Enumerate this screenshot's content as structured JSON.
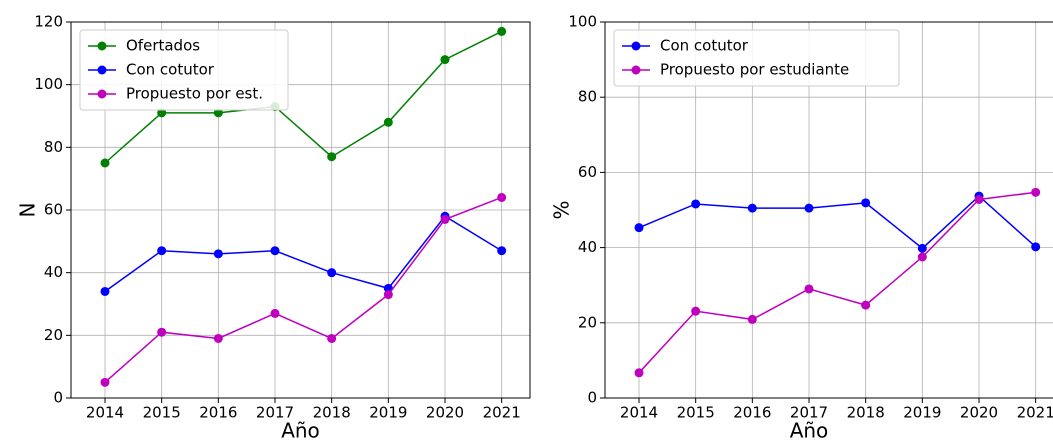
{
  "chart_data": [
    {
      "type": "line",
      "xlabel": "Año",
      "ylabel": "N",
      "x": [
        2014,
        2015,
        2016,
        2017,
        2018,
        2019,
        2020,
        2021
      ],
      "xlim": [
        2013.4,
        2021.5
      ],
      "xticks": [
        2014,
        2015,
        2016,
        2017,
        2018,
        2019,
        2020,
        2021
      ],
      "ylim": [
        0,
        120
      ],
      "yticks": [
        0,
        20,
        40,
        60,
        80,
        100,
        120
      ],
      "grid": true,
      "legend": "upper left",
      "series": [
        {
          "name": "Ofertados",
          "color": "#008000",
          "values": [
            75,
            91,
            91,
            93,
            77,
            88,
            108,
            117
          ]
        },
        {
          "name": "Con cotutor",
          "color": "#0000ff",
          "values": [
            34,
            47,
            46,
            47,
            40,
            35,
            58,
            47
          ]
        },
        {
          "name": "Propuesto por est.",
          "color": "#bf00bf",
          "values": [
            5,
            21,
            19,
            27,
            19,
            33,
            57,
            64
          ]
        }
      ]
    },
    {
      "type": "line",
      "xlabel": "Año",
      "ylabel": "%",
      "x": [
        2014,
        2015,
        2016,
        2017,
        2018,
        2019,
        2020,
        2021
      ],
      "xlim": [
        2013.4,
        2021.5
      ],
      "xticks": [
        2014,
        2015,
        2016,
        2017,
        2018,
        2019,
        2020,
        2021
      ],
      "ylim": [
        0,
        100
      ],
      "yticks": [
        0,
        20,
        40,
        60,
        80,
        100
      ],
      "grid": true,
      "legend": "upper left",
      "series": [
        {
          "name": "Con cotutor",
          "color": "#0000ff",
          "values": [
            45.3,
            51.6,
            50.5,
            50.5,
            51.9,
            39.8,
            53.7,
            40.2
          ]
        },
        {
          "name": "Propuesto por estudiante",
          "color": "#bf00bf",
          "values": [
            6.7,
            23.1,
            20.9,
            29.0,
            24.7,
            37.5,
            52.8,
            54.7
          ]
        }
      ]
    }
  ]
}
